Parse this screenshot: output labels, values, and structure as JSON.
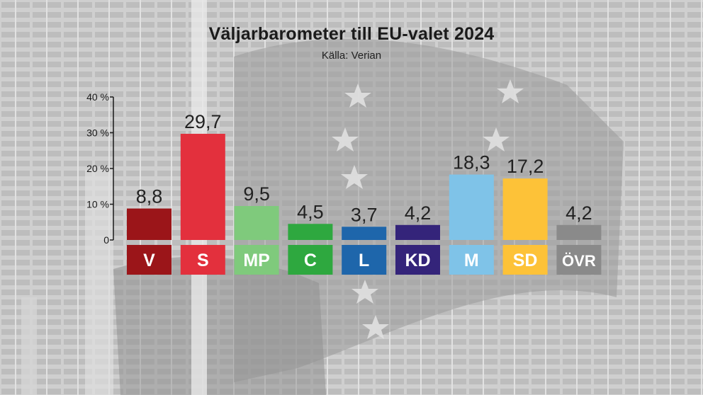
{
  "title": "Väljarbarometer till EU-valet 2024",
  "source": "Källa: Verian",
  "chart_data": {
    "type": "bar",
    "title": "Väljarbarometer till EU-valet 2024",
    "subtitle": "Källa: Verian",
    "ylim": [
      0,
      40
    ],
    "yticks": [
      0,
      10,
      20,
      30,
      40
    ],
    "ytick_labels": [
      "0",
      "10 %",
      "20 %",
      "30 %",
      "40 %"
    ],
    "grid": false,
    "categories": [
      "V",
      "S",
      "MP",
      "C",
      "L",
      "KD",
      "M",
      "SD",
      "ÖVR"
    ],
    "values": [
      8.8,
      29.7,
      9.5,
      4.5,
      3.7,
      4.2,
      18.3,
      17.2,
      4.2
    ],
    "value_labels": [
      "8,8",
      "29,7",
      "9,5",
      "4,5",
      "3,7",
      "4,2",
      "18,3",
      "17,2",
      "4,2"
    ],
    "colors": [
      "#9b1519",
      "#e3303d",
      "#7fca7c",
      "#2ea83f",
      "#1e66ab",
      "#34247a",
      "#7fc3e8",
      "#fdc238",
      "#8a8a8a"
    ]
  }
}
